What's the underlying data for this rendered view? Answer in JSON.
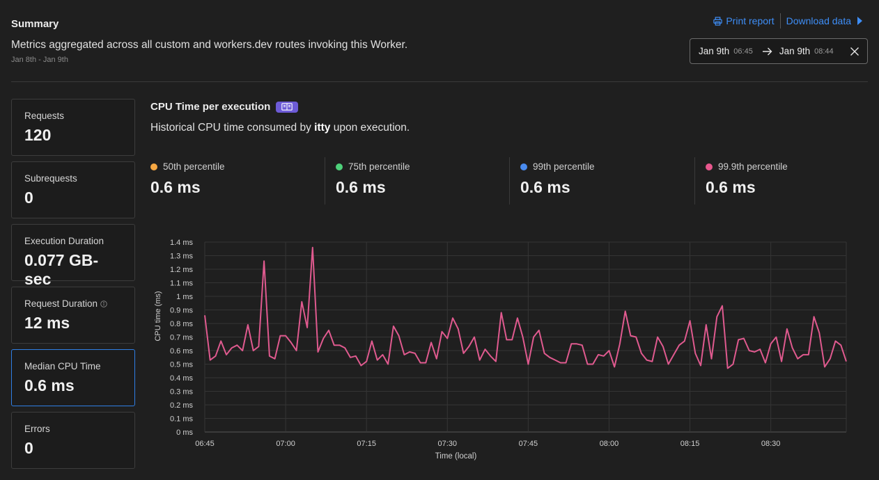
{
  "header": {
    "title": "Summary",
    "description": "Metrics aggregated across all custom and workers.dev routes invoking this Worker.",
    "date_range": "Jan 8th - Jan 9th"
  },
  "actions": {
    "print_label": "Print report",
    "download_label": "Download data"
  },
  "date_picker": {
    "start_date": "Jan 9th",
    "start_time": "06:45",
    "end_date": "Jan 9th",
    "end_time": "08:44"
  },
  "stats": [
    {
      "label": "Requests",
      "value": "120"
    },
    {
      "label": "Subrequests",
      "value": "0"
    },
    {
      "label": "Execution Duration",
      "value": "0.077 GB-sec"
    },
    {
      "label": "Request Duration",
      "value": "12 ms"
    },
    {
      "label": "Median CPU Time",
      "value": "0.6 ms"
    },
    {
      "label": "Errors",
      "value": "0"
    }
  ],
  "chart_section": {
    "title": "CPU Time per execution",
    "desc_prefix": "Historical CPU time consumed by",
    "worker_name": "itty",
    "desc_suffix": "upon execution."
  },
  "percentiles": [
    {
      "label": "50th percentile",
      "value": "0.6 ms",
      "color": "#f5a742"
    },
    {
      "label": "75th percentile",
      "value": "0.6 ms",
      "color": "#4ed17a"
    },
    {
      "label": "99th percentile",
      "value": "0.6 ms",
      "color": "#4a8cf0"
    },
    {
      "label": "99.9th percentile",
      "value": "0.6 ms",
      "color": "#e8578d"
    }
  ],
  "chart_data": {
    "type": "line",
    "xlabel": "Time (local)",
    "ylabel": "CPU time (ms)",
    "ylim": [
      0,
      1.4
    ],
    "y_ticks": [
      "0 ms",
      "0.1 ms",
      "0.2 ms",
      "0.3 ms",
      "0.4 ms",
      "0.5 ms",
      "0.6 ms",
      "0.7 ms",
      "0.8 ms",
      "0.9 ms",
      "1 ms",
      "1.1 ms",
      "1.2 ms",
      "1.3 ms",
      "1.4 ms"
    ],
    "x_ticks": [
      "06:45",
      "07:00",
      "07:15",
      "07:30",
      "07:45",
      "08:00",
      "08:15",
      "08:30"
    ],
    "xlim": [
      "06:45",
      "08:44"
    ],
    "grid": true,
    "series": [
      {
        "color": "#e05a8f",
        "values": [
          0.86,
          0.53,
          0.56,
          0.67,
          0.57,
          0.62,
          0.64,
          0.6,
          0.79,
          0.6,
          0.63,
          1.26,
          0.56,
          0.54,
          0.71,
          0.71,
          0.66,
          0.6,
          0.96,
          0.77,
          1.36,
          0.59,
          0.69,
          0.75,
          0.64,
          0.64,
          0.62,
          0.55,
          0.56,
          0.49,
          0.52,
          0.67,
          0.53,
          0.57,
          0.5,
          0.78,
          0.71,
          0.57,
          0.59,
          0.58,
          0.51,
          0.51,
          0.66,
          0.54,
          0.74,
          0.69,
          0.84,
          0.76,
          0.58,
          0.63,
          0.7,
          0.53,
          0.61,
          0.56,
          0.52,
          0.88,
          0.68,
          0.68,
          0.84,
          0.7,
          0.5,
          0.7,
          0.75,
          0.58,
          0.55,
          0.53,
          0.51,
          0.51,
          0.65,
          0.65,
          0.64,
          0.5,
          0.5,
          0.57,
          0.56,
          0.6,
          0.48,
          0.65,
          0.89,
          0.71,
          0.7,
          0.58,
          0.53,
          0.52,
          0.7,
          0.63,
          0.5,
          0.57,
          0.64,
          0.67,
          0.82,
          0.58,
          0.49,
          0.79,
          0.54,
          0.85,
          0.93,
          0.47,
          0.5,
          0.68,
          0.69,
          0.6,
          0.59,
          0.61,
          0.51,
          0.65,
          0.7,
          0.52,
          0.76,
          0.62,
          0.54,
          0.57,
          0.57,
          0.85,
          0.73,
          0.48,
          0.54,
          0.67,
          0.64,
          0.52
        ]
      }
    ]
  }
}
